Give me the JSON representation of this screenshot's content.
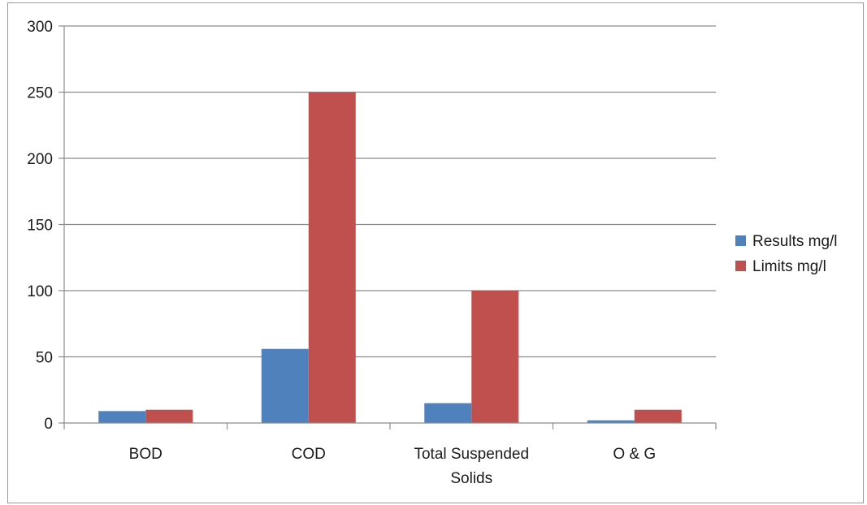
{
  "chart_data": {
    "type": "bar",
    "categories": [
      "BOD",
      "COD",
      "Total Suspended Solids",
      "O & G"
    ],
    "category_lines": [
      [
        "BOD"
      ],
      [
        "COD"
      ],
      [
        "Total Suspended",
        "Solids"
      ],
      [
        "O & G"
      ]
    ],
    "series": [
      {
        "name": "Results mg/l",
        "values": [
          9,
          56,
          15,
          2
        ],
        "color": "#4f81bd"
      },
      {
        "name": "Limits mg/l",
        "values": [
          10,
          250,
          100,
          10
        ],
        "color": "#c0504d"
      }
    ],
    "ylim": [
      0,
      300
    ],
    "yticks": [
      0,
      50,
      100,
      150,
      200,
      250,
      300
    ],
    "grid": true,
    "legend_position": "right"
  }
}
